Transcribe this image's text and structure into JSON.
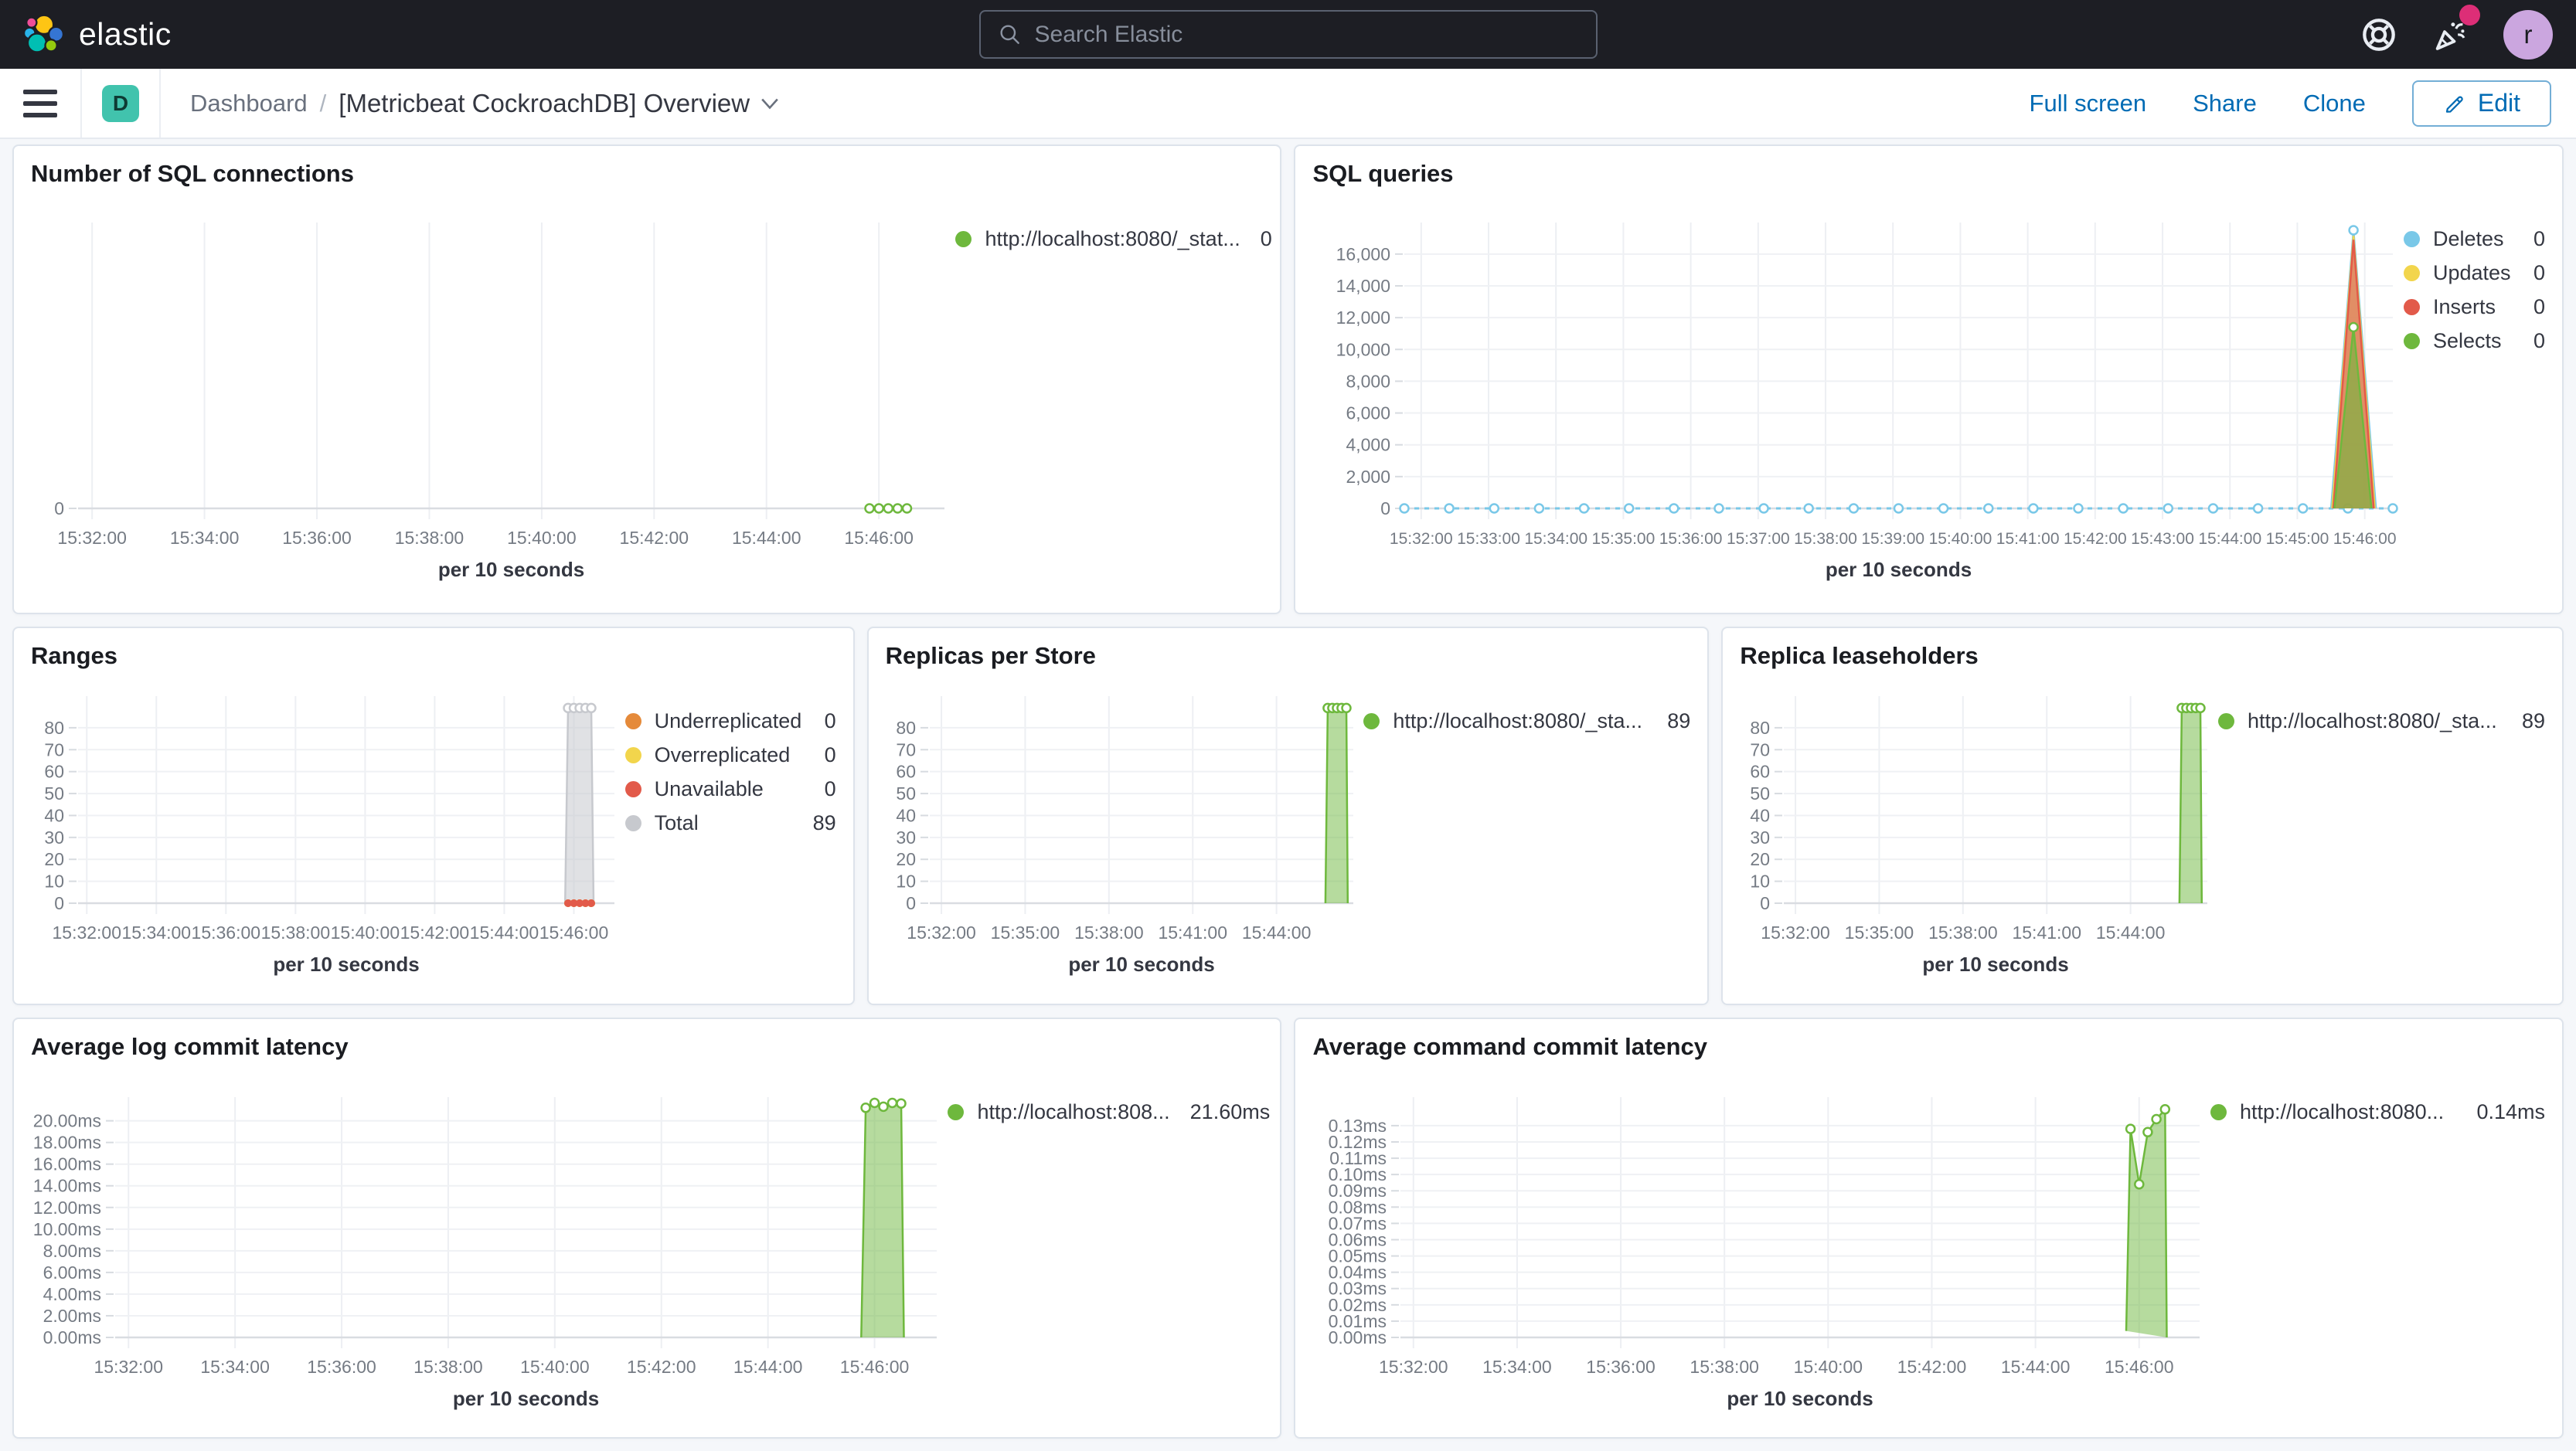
{
  "chrome": {
    "brand": "elastic",
    "search_placeholder": "Search Elastic",
    "avatar_initial": "r",
    "colors": {
      "navbar_bg": "#1D1E24",
      "notification_dot": "#DD2E77",
      "avatar_bg": "#CBA6DF",
      "space_badge": "#41C3AD",
      "link_blue": "#006BB4"
    }
  },
  "toolbar": {
    "space_initial": "D",
    "breadcrumb_root": "Dashboard",
    "separator": "/",
    "title": "[Metricbeat CockroachDB] Overview",
    "full_screen": "Full screen",
    "share": "Share",
    "clone": "Clone",
    "edit": "Edit"
  },
  "chart_data": [
    {
      "id": "number-of-sql-connections",
      "title": "Number of SQL connections",
      "type": "line",
      "xlabel": "per 10 seconds",
      "x_domain": [
        "15:31:45",
        "15:47:10"
      ],
      "x_ticks": [
        "15:32:00",
        "15:34:00",
        "15:36:00",
        "15:38:00",
        "15:40:00",
        "15:42:00",
        "15:44:00",
        "15:46:00"
      ],
      "y_domain": [
        0,
        1
      ],
      "y_ticks": [
        0
      ],
      "y_tick_labels": [
        "0"
      ],
      "legend": [
        {
          "label": "http://localhost:8080/_stat...",
          "value": "0",
          "color": "#6EB83D"
        }
      ],
      "series": [
        {
          "name": "http://localhost:8080/_stat...",
          "kind": "line",
          "color": "#6EB83D",
          "dash": "3 5",
          "marker": "hollow",
          "points": [
            [
              "15:45:50",
              0
            ],
            [
              "15:46:00",
              0
            ],
            [
              "15:46:10",
              0
            ],
            [
              "15:46:20",
              0
            ],
            [
              "15:46:30",
              0
            ]
          ]
        }
      ]
    },
    {
      "id": "sql-queries",
      "title": "SQL queries",
      "type": "area",
      "xlabel": "per 10 seconds",
      "x_domain": [
        "15:31:45",
        "15:46:25"
      ],
      "x_ticks": [
        "15:32:00",
        "15:33:00",
        "15:34:00",
        "15:35:00",
        "15:36:00",
        "15:37:00",
        "15:38:00",
        "15:39:00",
        "15:40:00",
        "15:41:00",
        "15:42:00",
        "15:43:00",
        "15:44:00",
        "15:45:00",
        "15:46:00"
      ],
      "y_domain": [
        0,
        17790
      ],
      "y_ticks": [
        0,
        2000,
        4000,
        6000,
        8000,
        10000,
        12000,
        14000,
        16000
      ],
      "y_tick_labels": [
        "0",
        "2,000",
        "4,000",
        "6,000",
        "8,000",
        "10,000",
        "12,000",
        "14,000",
        "16,000"
      ],
      "legend": [
        {
          "label": "Deletes",
          "value": "0",
          "color": "#79C8E8"
        },
        {
          "label": "Updates",
          "value": "0",
          "color": "#F2D54C"
        },
        {
          "label": "Inserts",
          "value": "0",
          "color": "#E25A4A"
        },
        {
          "label": "Selects",
          "value": "0",
          "color": "#6EB83D"
        }
      ],
      "series": [
        {
          "name": "Deletes",
          "kind": "line",
          "color": "#79C8E8",
          "dash": "6 7",
          "marker": "hollow",
          "marker_interval": 40,
          "points": [
            [
              "15:31:45",
              0
            ],
            [
              "15:46:25",
              0
            ]
          ]
        },
        {
          "name": "Deletes",
          "kind": "area",
          "color": "#79C8E8",
          "fill_opacity": 0.45,
          "marker": "hollow",
          "markers": [
            [
              "15:45:50",
              17500
            ]
          ],
          "points": [
            [
              "15:45:30",
              0
            ],
            [
              "15:45:50",
              17500
            ],
            [
              "15:46:10",
              0
            ]
          ]
        },
        {
          "name": "Updates",
          "kind": "area",
          "color": "#F2D54C",
          "fill_opacity": 0.6,
          "points": [
            [
              "15:45:31",
              0
            ],
            [
              "15:45:50",
              17150
            ],
            [
              "15:46:09",
              0
            ]
          ]
        },
        {
          "name": "Inserts",
          "kind": "area",
          "color": "#E25A4A",
          "fill_opacity": 0.6,
          "points": [
            [
              "15:45:32",
              0
            ],
            [
              "15:45:50",
              16900
            ],
            [
              "15:46:08",
              0
            ]
          ]
        },
        {
          "name": "Selects",
          "kind": "area",
          "color": "#6EB83D",
          "fill_opacity": 0.6,
          "marker": "hollow",
          "markers": [
            [
              "15:45:50",
              11400
            ]
          ],
          "points": [
            [
              "15:45:33",
              0
            ],
            [
              "15:45:50",
              11400
            ],
            [
              "15:46:06",
              0
            ]
          ]
        }
      ]
    },
    {
      "id": "ranges",
      "title": "Ranges",
      "type": "area",
      "xlabel": "per 10 seconds",
      "x_domain": [
        "15:31:45",
        "15:47:10"
      ],
      "x_ticks": [
        "15:32:00",
        "15:34:00",
        "15:36:00",
        "15:38:00",
        "15:40:00",
        "15:42:00",
        "15:44:00",
        "15:46:00"
      ],
      "y_domain": [
        0,
        93
      ],
      "y_ticks": [
        0,
        10,
        20,
        30,
        40,
        50,
        60,
        70,
        80
      ],
      "y_tick_labels": [
        "0",
        "10",
        "20",
        "30",
        "40",
        "50",
        "60",
        "70",
        "80"
      ],
      "legend": [
        {
          "label": "Underreplicated",
          "value": "0",
          "color": "#E58A3A"
        },
        {
          "label": "Overreplicated",
          "value": "0",
          "color": "#F2D54C"
        },
        {
          "label": "Unavailable",
          "value": "0",
          "color": "#E25A4A"
        },
        {
          "label": "Total",
          "value": "89",
          "color": "#C7C9CE"
        }
      ],
      "series": [
        {
          "name": "Total",
          "kind": "area",
          "color": "#C7C9CE",
          "fill_opacity": 0.55,
          "marker": "hollow",
          "markers": [
            [
              "15:45:50",
              89
            ],
            [
              "15:46:00",
              89
            ],
            [
              "15:46:10",
              89
            ],
            [
              "15:46:20",
              89
            ],
            [
              "15:46:30",
              89
            ]
          ],
          "points": [
            [
              "15:45:45",
              0
            ],
            [
              "15:45:50",
              89
            ],
            [
              "15:46:00",
              89
            ],
            [
              "15:46:10",
              89
            ],
            [
              "15:46:20",
              89
            ],
            [
              "15:46:30",
              89
            ],
            [
              "15:46:34",
              0
            ]
          ]
        },
        {
          "name": "Underreplicated",
          "kind": "line",
          "color": "#E58A3A",
          "marker": "solid",
          "marker_interval": 10,
          "points": [
            [
              "15:45:50",
              0
            ],
            [
              "15:46:30",
              0
            ]
          ]
        },
        {
          "name": "Overreplicated",
          "kind": "line",
          "color": "#F2D54C",
          "marker": "solid",
          "marker_interval": 10,
          "points": [
            [
              "15:45:50",
              0
            ],
            [
              "15:46:30",
              0
            ]
          ]
        },
        {
          "name": "Unavailable",
          "kind": "line",
          "color": "#E25A4A",
          "marker": "solid",
          "marker_interval": 10,
          "points": [
            [
              "15:45:50",
              0
            ],
            [
              "15:46:30",
              0
            ]
          ]
        }
      ]
    },
    {
      "id": "replicas-per-store",
      "title": "Replicas per Store",
      "type": "area",
      "xlabel": "per 10 seconds",
      "x_domain": [
        "15:31:35",
        "15:46:45"
      ],
      "x_ticks": [
        "15:32:00",
        "15:35:00",
        "15:38:00",
        "15:41:00",
        "15:44:00"
      ],
      "y_domain": [
        0,
        93
      ],
      "y_ticks": [
        0,
        10,
        20,
        30,
        40,
        50,
        60,
        70,
        80
      ],
      "y_tick_labels": [
        "0",
        "10",
        "20",
        "30",
        "40",
        "50",
        "60",
        "70",
        "80"
      ],
      "legend": [
        {
          "label": "http://localhost:8080/_sta...",
          "value": "89",
          "color": "#6EB83D"
        }
      ],
      "series": [
        {
          "name": "http://localhost:8080/_sta...",
          "kind": "area",
          "color": "#6EB83D",
          "fill_opacity": 0.5,
          "marker": "hollow",
          "markers": [
            [
              "15:45:50",
              89
            ],
            [
              "15:46:00",
              89
            ],
            [
              "15:46:10",
              89
            ],
            [
              "15:46:20",
              89
            ],
            [
              "15:46:30",
              89
            ]
          ],
          "points": [
            [
              "15:45:45",
              0
            ],
            [
              "15:45:50",
              89
            ],
            [
              "15:46:00",
              89
            ],
            [
              "15:46:10",
              89
            ],
            [
              "15:46:20",
              89
            ],
            [
              "15:46:30",
              89
            ],
            [
              "15:46:33",
              0
            ]
          ]
        }
      ]
    },
    {
      "id": "replica-leaseholders",
      "title": "Replica leaseholders",
      "type": "area",
      "xlabel": "per 10 seconds",
      "x_domain": [
        "15:31:35",
        "15:46:45"
      ],
      "x_ticks": [
        "15:32:00",
        "15:35:00",
        "15:38:00",
        "15:41:00",
        "15:44:00"
      ],
      "y_domain": [
        0,
        93
      ],
      "y_ticks": [
        0,
        10,
        20,
        30,
        40,
        50,
        60,
        70,
        80
      ],
      "y_tick_labels": [
        "0",
        "10",
        "20",
        "30",
        "40",
        "50",
        "60",
        "70",
        "80"
      ],
      "legend": [
        {
          "label": "http://localhost:8080/_sta...",
          "value": "89",
          "color": "#6EB83D"
        }
      ],
      "series": [
        {
          "name": "http://localhost:8080/_sta...",
          "kind": "area",
          "color": "#6EB83D",
          "fill_opacity": 0.5,
          "marker": "hollow",
          "markers": [
            [
              "15:45:50",
              89
            ],
            [
              "15:46:00",
              89
            ],
            [
              "15:46:10",
              89
            ],
            [
              "15:46:20",
              89
            ],
            [
              "15:46:30",
              89
            ]
          ],
          "points": [
            [
              "15:45:45",
              0
            ],
            [
              "15:45:50",
              89
            ],
            [
              "15:46:00",
              89
            ],
            [
              "15:46:10",
              89
            ],
            [
              "15:46:20",
              89
            ],
            [
              "15:46:30",
              89
            ],
            [
              "15:46:33",
              0
            ]
          ]
        }
      ]
    },
    {
      "id": "average-log-commit-latency",
      "title": "Average log commit latency",
      "type": "area",
      "xlabel": "per 10 seconds",
      "x_domain": [
        "15:31:45",
        "15:47:10"
      ],
      "x_ticks": [
        "15:32:00",
        "15:34:00",
        "15:36:00",
        "15:38:00",
        "15:40:00",
        "15:42:00",
        "15:44:00",
        "15:46:00"
      ],
      "y_domain": [
        0,
        21.9
      ],
      "y_ticks": [
        0,
        2,
        4,
        6,
        8,
        10,
        12,
        14,
        16,
        18,
        20
      ],
      "y_tick_labels": [
        "0.00ms",
        "2.00ms",
        "4.00ms",
        "6.00ms",
        "8.00ms",
        "10.00ms",
        "12.00ms",
        "14.00ms",
        "16.00ms",
        "18.00ms",
        "20.00ms"
      ],
      "legend": [
        {
          "label": "http://localhost:808...",
          "value": "21.60ms",
          "color": "#6EB83D"
        }
      ],
      "series": [
        {
          "name": "http://localhost:808...",
          "kind": "area",
          "color": "#6EB83D",
          "fill_opacity": 0.5,
          "marker": "hollow",
          "markers": [
            [
              "15:45:50",
              21.2
            ],
            [
              "15:46:00",
              21.65
            ],
            [
              "15:46:10",
              21.3
            ],
            [
              "15:46:20",
              21.65
            ],
            [
              "15:46:30",
              21.6
            ]
          ],
          "points": [
            [
              "15:45:45",
              0
            ],
            [
              "15:45:50",
              21.2
            ],
            [
              "15:46:00",
              21.65
            ],
            [
              "15:46:10",
              21.3
            ],
            [
              "15:46:20",
              21.65
            ],
            [
              "15:46:30",
              21.6
            ],
            [
              "15:46:33",
              0
            ]
          ]
        }
      ]
    },
    {
      "id": "average-command-commit-latency",
      "title": "Average command commit latency",
      "type": "area",
      "xlabel": "per 10 seconds",
      "x_domain": [
        "15:31:45",
        "15:47:10"
      ],
      "x_ticks": [
        "15:32:00",
        "15:34:00",
        "15:36:00",
        "15:38:00",
        "15:40:00",
        "15:42:00",
        "15:44:00",
        "15:46:00"
      ],
      "y_domain": [
        0,
        0.1456
      ],
      "y_ticks": [
        0,
        0.01,
        0.02,
        0.03,
        0.04,
        0.05,
        0.06,
        0.07,
        0.08,
        0.09,
        0.1,
        0.11,
        0.12,
        0.13
      ],
      "y_tick_labels": [
        "0.00ms",
        "0.01ms",
        "0.02ms",
        "0.03ms",
        "0.04ms",
        "0.05ms",
        "0.06ms",
        "0.07ms",
        "0.08ms",
        "0.09ms",
        "0.10ms",
        "0.11ms",
        "0.12ms",
        "0.13ms"
      ],
      "legend": [
        {
          "label": "http://localhost:8080...",
          "value": "0.14ms",
          "color": "#6EB83D"
        }
      ],
      "series": [
        {
          "name": "http://localhost:8080...",
          "kind": "area",
          "color": "#6EB83D",
          "fill_opacity": 0.5,
          "marker": "hollow",
          "markers": [
            [
              "15:45:50",
              0.128
            ],
            [
              "15:46:00",
              0.094
            ],
            [
              "15:46:10",
              0.126
            ],
            [
              "15:46:20",
              0.134
            ],
            [
              "15:46:30",
              0.14
            ]
          ],
          "points": [
            [
              "15:45:45",
              0.004
            ],
            [
              "15:45:50",
              0.128
            ],
            [
              "15:46:00",
              0.094
            ],
            [
              "15:46:10",
              0.126
            ],
            [
              "15:46:20",
              0.134
            ],
            [
              "15:46:30",
              0.14
            ],
            [
              "15:46:32",
              0
            ]
          ]
        }
      ]
    }
  ]
}
